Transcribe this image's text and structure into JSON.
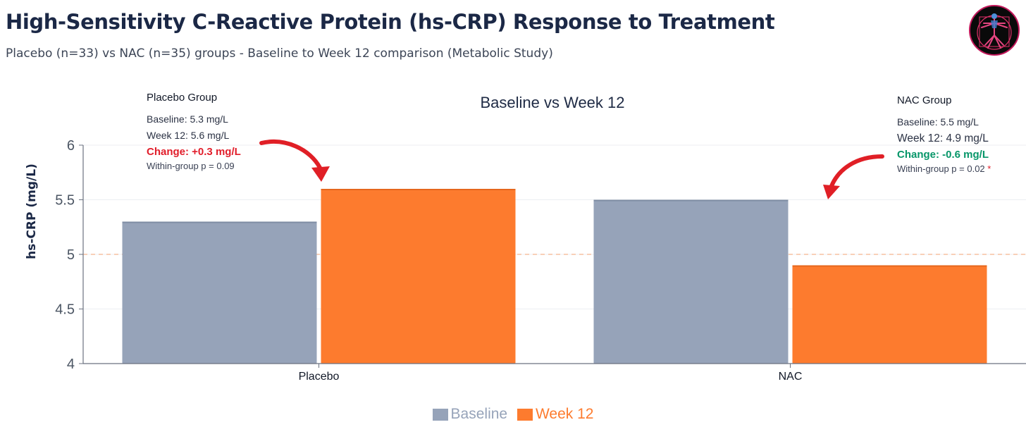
{
  "header": {
    "title": "High-Sensitivity C-Reactive Protein (hs-CRP) Response to Treatment",
    "subtitle": "Placebo (n=33) vs NAC (n=35) groups - Baseline to Week 12 comparison (Metabolic Study)",
    "logo_icon": "vitruvian-figure-icon"
  },
  "annotations": {
    "placebo": {
      "heading": "Placebo Group",
      "baseline": "Baseline: 5.3 mg/L",
      "week12": "Week 12: 5.6 mg/L",
      "change": "Change: +0.3 mg/L",
      "p_value": "Within-group p = 0.09"
    },
    "nac": {
      "heading": "NAC Group",
      "baseline": "Baseline: 5.5 mg/L",
      "week12": "Week 12: 4.9 mg/L",
      "change": "Change: -0.6 mg/L",
      "p_value": "Within-group p = 0.02",
      "significance_mark": "*"
    }
  },
  "colors": {
    "baseline": "#96a3b9",
    "week12": "#fd7b2e",
    "change_up": "#e11d2a",
    "change_down": "#079669",
    "reference_line": "#f4b48e"
  },
  "chart_data": {
    "type": "bar",
    "title": "Baseline vs Week 12",
    "ylabel": "hs-CRP (mg/L)",
    "xlabel": "",
    "categories": [
      "Placebo",
      "NAC"
    ],
    "series": [
      {
        "name": "Baseline",
        "values": [
          5.3,
          5.5
        ]
      },
      {
        "name": "Week 12",
        "values": [
          5.6,
          4.9
        ]
      }
    ],
    "ylim": [
      4,
      6
    ],
    "yticks": [
      4,
      4.5,
      5,
      5.5,
      6
    ],
    "ytick_labels": [
      "4",
      "4.5",
      "5",
      "5.5",
      "6"
    ],
    "reference_line": 5,
    "grid": true,
    "legend_position": "bottom-center"
  }
}
